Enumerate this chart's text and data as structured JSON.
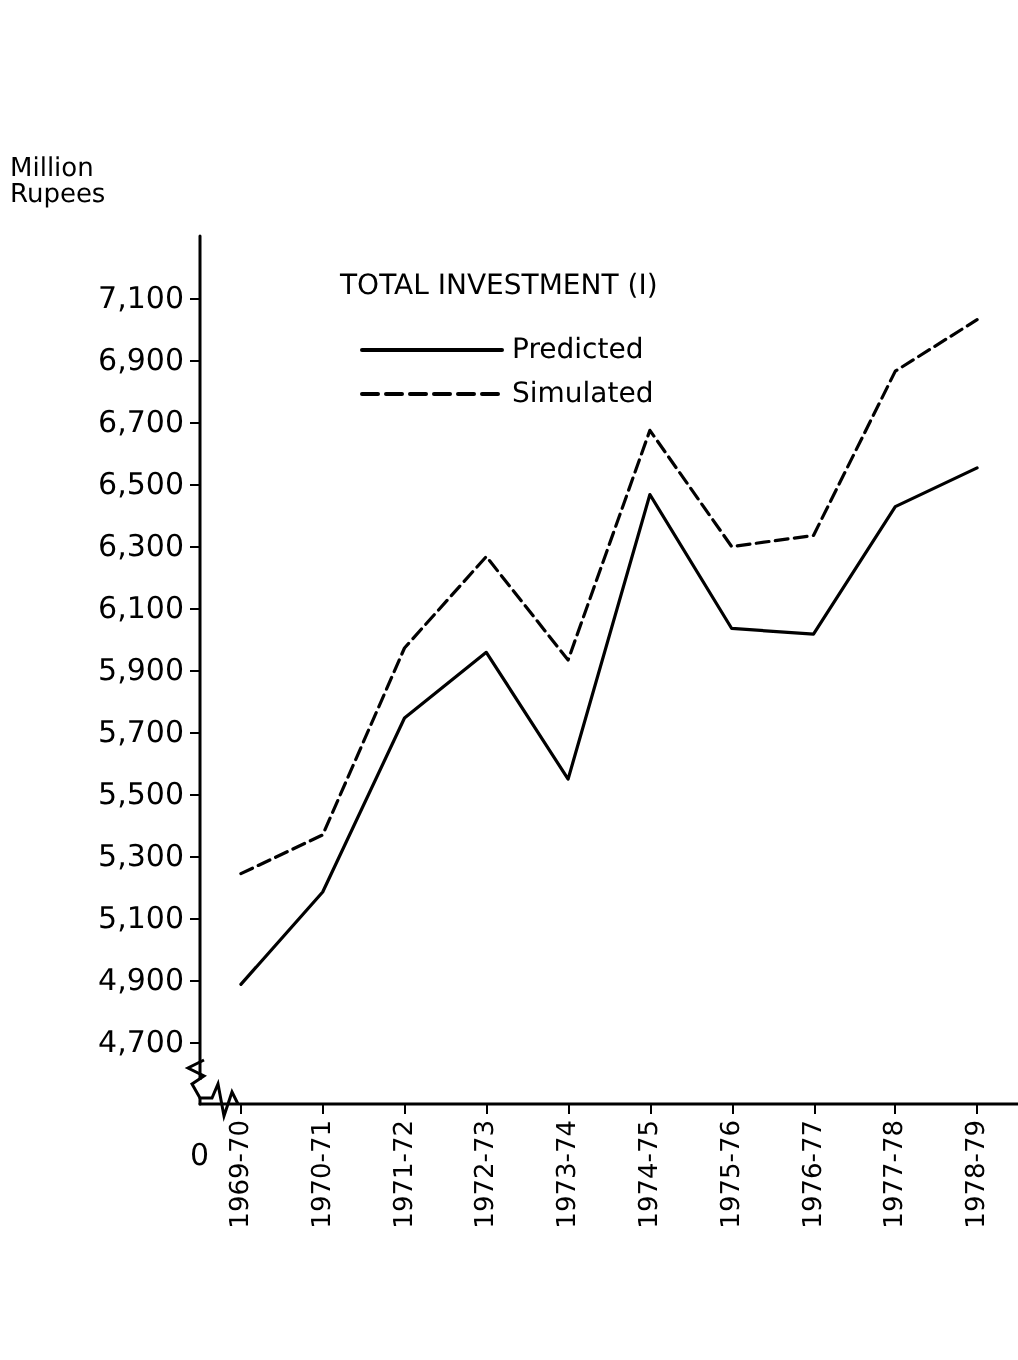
{
  "chart_data": {
    "type": "line",
    "ylabel": "Million Rupees",
    "legend_title": "TOTAL INVESTMENT (I)",
    "categories": [
      "1969-70",
      "1970-71",
      "1971-72",
      "1972-73",
      "1973-74",
      "1974-75",
      "1975-76",
      "1976-77",
      "1977-78",
      "1978-79"
    ],
    "series": [
      {
        "name": "Predicted",
        "color": "#000000",
        "line_style": "solid",
        "values": [
          4886,
          5184,
          5745,
          5957,
          5548,
          6466,
          6034,
          6016,
          6427,
          6552
        ]
      },
      {
        "name": "Simulated",
        "color": "#000000",
        "line_style": "dashed",
        "values": [
          5243,
          5368,
          5971,
          6266,
          5932,
          6673,
          6298,
          6334,
          6864,
          7030
        ]
      }
    ],
    "ylim": [
      4500,
      7300
    ],
    "yticks": [
      {
        "value": 4700,
        "label": "4,700"
      },
      {
        "value": 4900,
        "label": "4,900"
      },
      {
        "value": 5100,
        "label": "5,100"
      },
      {
        "value": 5300,
        "label": "5,300"
      },
      {
        "value": 5500,
        "label": "5,500"
      },
      {
        "value": 5700,
        "label": "5,700"
      },
      {
        "value": 5900,
        "label": "5,900"
      },
      {
        "value": 6100,
        "label": "6,100"
      },
      {
        "value": 6300,
        "label": "6,300"
      },
      {
        "value": 6500,
        "label": "6,500"
      },
      {
        "value": 6700,
        "label": "6,700"
      },
      {
        "value": 6900,
        "label": "6,900"
      },
      {
        "value": 7100,
        "label": "7,100"
      }
    ],
    "annotations": [
      "0"
    ],
    "grid": false,
    "legend": "top left",
    "marker": "none"
  }
}
